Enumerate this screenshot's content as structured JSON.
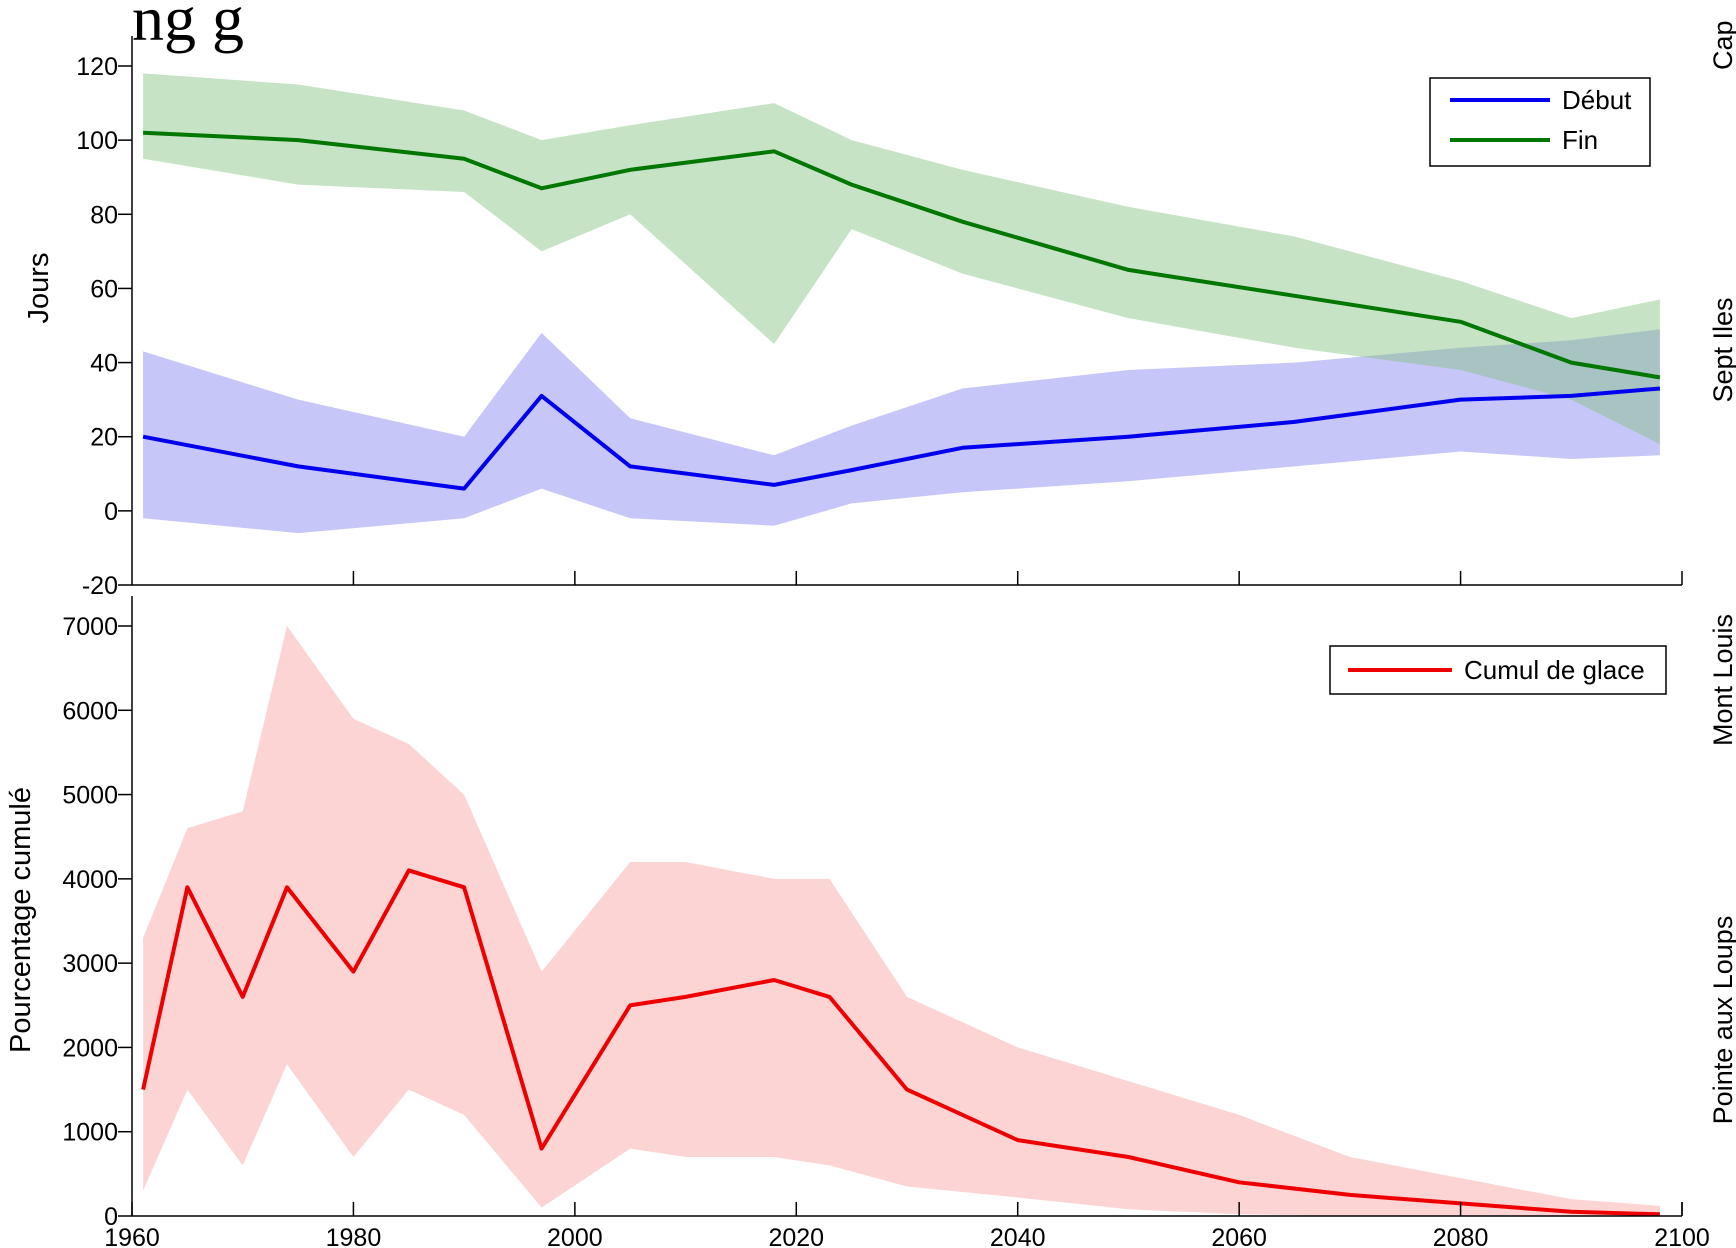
{
  "page": {
    "title_fragment": "ng g",
    "side_labels": [
      "Cap",
      "Sept Iles",
      "Mont Louis",
      "Pointe aux Loups"
    ]
  },
  "chart_data": [
    {
      "type": "line",
      "ylabel": "Jours",
      "xlim": [
        1960,
        2100
      ],
      "ylim": [
        -20,
        120
      ],
      "yticks": [
        -20,
        0,
        20,
        40,
        60,
        80,
        100,
        120
      ],
      "xticks": [
        1980,
        2000,
        2020,
        2040,
        2060,
        2080
      ],
      "legend": "top-right",
      "x": [
        1961,
        1975,
        1990,
        1997,
        2005,
        2018,
        2025,
        2035,
        2050,
        2065,
        2080,
        2090,
        2098
      ],
      "series": [
        {
          "name": "Début",
          "color": "#0000ee",
          "band_color": "#8080f0",
          "values": [
            20,
            12,
            6,
            31,
            12,
            7,
            11,
            17,
            20,
            24,
            30,
            31,
            33
          ],
          "lower": [
            -2,
            -6,
            -2,
            6,
            -2,
            -4,
            2,
            5,
            8,
            12,
            16,
            14,
            15
          ],
          "upper": [
            43,
            30,
            20,
            48,
            25,
            15,
            23,
            33,
            38,
            40,
            44,
            46,
            49
          ]
        },
        {
          "name": "Fin",
          "color": "#007700",
          "band_color": "#80c080",
          "values": [
            102,
            100,
            95,
            87,
            92,
            97,
            88,
            78,
            65,
            58,
            51,
            40,
            36
          ],
          "lower": [
            95,
            88,
            86,
            70,
            80,
            45,
            76,
            64,
            52,
            44,
            38,
            30,
            18
          ],
          "upper": [
            118,
            115,
            108,
            100,
            104,
            110,
            100,
            92,
            82,
            74,
            62,
            52,
            57
          ]
        }
      ]
    },
    {
      "type": "line",
      "ylabel": "Pourcentage cumulé",
      "xlim": [
        1960,
        2100
      ],
      "ylim": [
        0,
        7000
      ],
      "yticks": [
        0,
        1000,
        2000,
        3000,
        4000,
        5000,
        6000,
        7000
      ],
      "xticks": [
        1960,
        1980,
        2000,
        2020,
        2040,
        2060,
        2080,
        2100
      ],
      "legend": "top-right",
      "x": [
        1961,
        1965,
        1970,
        1974,
        1980,
        1985,
        1990,
        1997,
        2005,
        2010,
        2018,
        2023,
        2030,
        2040,
        2050,
        2060,
        2070,
        2080,
        2090,
        2098
      ],
      "series": [
        {
          "name": "Cumul de glace",
          "color": "#ee0000",
          "band_color": "#f8a0a0",
          "values": [
            1500,
            3900,
            2600,
            3900,
            2900,
            4100,
            3900,
            800,
            2500,
            2600,
            2800,
            2600,
            1500,
            900,
            700,
            400,
            250,
            150,
            50,
            20
          ],
          "lower": [
            300,
            1500,
            600,
            1800,
            700,
            1500,
            1200,
            100,
            800,
            700,
            700,
            600,
            350,
            220,
            80,
            20,
            0,
            0,
            0,
            0
          ],
          "upper": [
            3300,
            4600,
            4800,
            7000,
            5900,
            5600,
            5000,
            2900,
            4200,
            4200,
            4000,
            4000,
            2600,
            2000,
            1600,
            1200,
            700,
            450,
            200,
            120
          ]
        }
      ]
    }
  ]
}
